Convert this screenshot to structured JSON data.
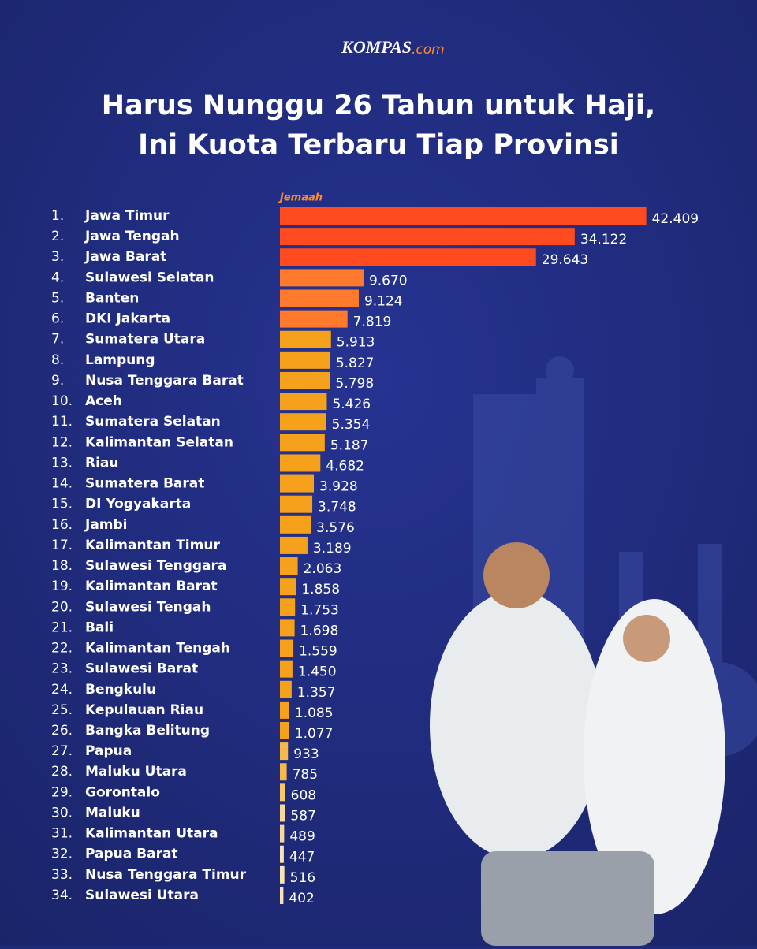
{
  "brand": {
    "name": "KOMPAS",
    "suffix": ".com"
  },
  "chart_data": {
    "type": "bar",
    "orientation": "horizontal",
    "title": [
      "Harus Nunggu 26 Tahun untuk Haji,",
      "Ini Kuota Terbaru Tiap Provinsi"
    ],
    "xlabel": "Jemaah",
    "ranks": [
      "1.",
      "2.",
      "3.",
      "4.",
      "5.",
      "6.",
      "7.",
      "8.",
      "9.",
      "10.",
      "11.",
      "12.",
      "13.",
      "14.",
      "15.",
      "16.",
      "17.",
      "18.",
      "19.",
      "20.",
      "21.",
      "22.",
      "23.",
      "24.",
      "25.",
      "26.",
      "27.",
      "28.",
      "29.",
      "30.",
      "31.",
      "32.",
      "33.",
      "34."
    ],
    "categories": [
      "Jawa Timur",
      "Jawa Tengah",
      "Jawa Barat",
      "Sulawesi Selatan",
      "Banten",
      "DKI Jakarta",
      "Sumatera Utara",
      "Lampung",
      "Nusa Tenggara Barat",
      "Aceh",
      "Sumatera Selatan",
      "Kalimantan Selatan",
      "Riau",
      "Sumatera Barat",
      "DI Yogyakarta",
      "Jambi",
      "Kalimantan Timur",
      "Sulawesi Tenggara",
      "Kalimantan Barat",
      "Sulawesi Tengah",
      "Bali",
      "Kalimantan Tengah",
      "Sulawesi Barat",
      "Bengkulu",
      "Kepulauan Riau",
      "Bangka Belitung",
      "Papua",
      "Maluku Utara",
      "Gorontalo",
      "Maluku",
      "Kalimantan Utara",
      "Papua Barat",
      "Nusa Tenggara Timur",
      "Sulawesi Utara"
    ],
    "values": [
      42409,
      34122,
      29643,
      9670,
      9124,
      7819,
      5913,
      5827,
      5798,
      5426,
      5354,
      5187,
      4682,
      3928,
      3748,
      3576,
      3189,
      2063,
      1858,
      1753,
      1698,
      1559,
      1450,
      1357,
      1085,
      1077,
      933,
      785,
      608,
      587,
      489,
      447,
      516,
      402
    ],
    "value_labels": [
      "42.409",
      "34.122",
      "29.643",
      "9.670",
      "9.124",
      "7.819",
      "5.913",
      "5.827",
      "5.798",
      "5.426",
      "5.354",
      "5.187",
      "4.682",
      "3.928",
      "3.748",
      "3.576",
      "3.189",
      "2.063",
      "1.858",
      "1.753",
      "1.698",
      "1.559",
      "1.450",
      "1.357",
      "1.085",
      "1.077",
      "933",
      "785",
      "608",
      "587",
      "489",
      "447",
      "516",
      "402"
    ],
    "colors": [
      "#ff4b1f",
      "#ff4b1f",
      "#ff4b1f",
      "#ff7a2c",
      "#ff7a2c",
      "#ff7a2c",
      "#f5a11c",
      "#f5a11c",
      "#f5a11c",
      "#f5a11c",
      "#f5a11c",
      "#f5a11c",
      "#f5a11c",
      "#f5a11c",
      "#f5a11c",
      "#f5a11c",
      "#f5a11c",
      "#f5a11c",
      "#f5a11c",
      "#f5a11c",
      "#f5a11c",
      "#f5a11c",
      "#f5a11c",
      "#f5a11c",
      "#f5a11c",
      "#f5a11c",
      "#f7b84a",
      "#f7b84a",
      "#f7c66b",
      "#f8d89a",
      "#f8d89a",
      "#f8e2b8",
      "#f8e2b8",
      "#f8e2b8"
    ],
    "xlim": [
      0,
      45000
    ]
  }
}
